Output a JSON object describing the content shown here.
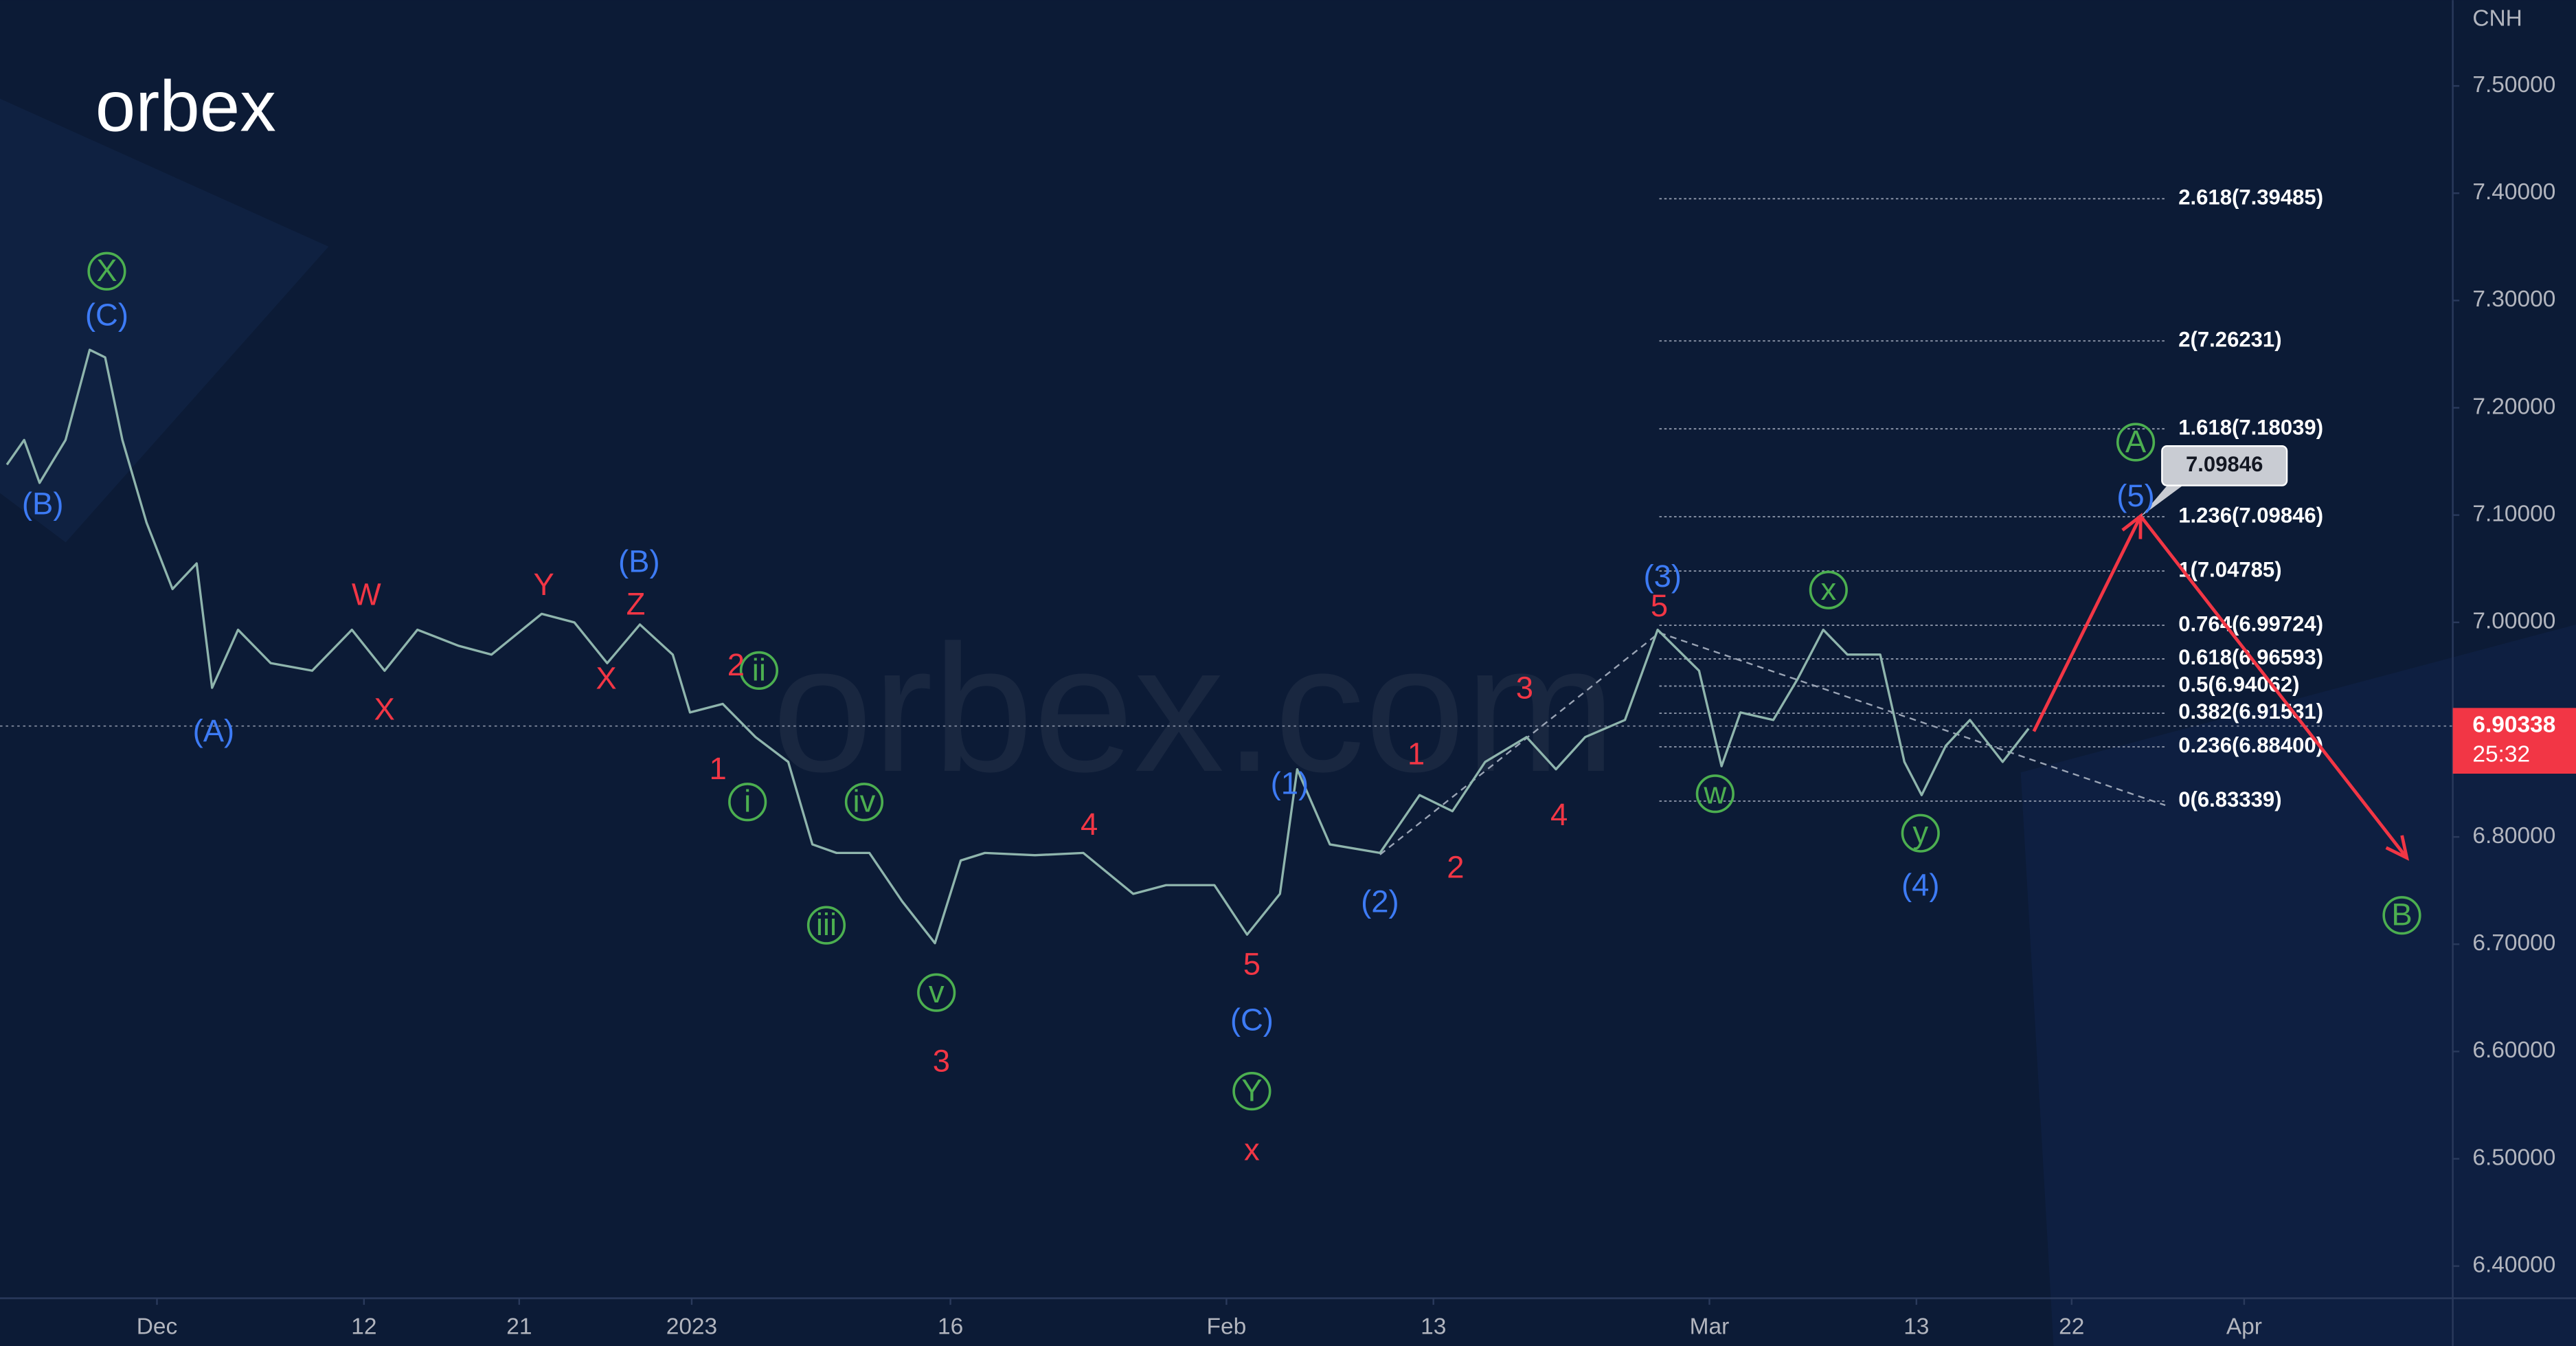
{
  "brand": "orbex",
  "watermark": "orbex.com",
  "chart_data": {
    "type": "line",
    "symbol": "CNH",
    "x": [
      -8.7,
      -7.7,
      -6.8,
      -5.3,
      -3.9,
      -3,
      -2,
      -0.6,
      0.9,
      2.3,
      3.2,
      4.7,
      6.6,
      9,
      11.3,
      13.2,
      15.1,
      17.5,
      19.4,
      22.3,
      24.2,
      26.1,
      28,
      29.9,
      30.9,
      32.8,
      34.7,
      36.6,
      38,
      39.4,
      41.3,
      43.2,
      45.1,
      46.6,
      48,
      50.9,
      53.7,
      56.6,
      58.5,
      61.3,
      63.2,
      65.1,
      66.1,
      68,
      70.9,
      73.2,
      75.1,
      77,
      79.4,
      81.1,
      82.8,
      85.1,
      87,
      89.4,
      90.7,
      91.8,
      93.7,
      95.1,
      96.6,
      98,
      99.9,
      101.3,
      102.3,
      103.7,
      105.1,
      107,
      108.5
    ],
    "series": [
      {
        "color": "#8fb5ad",
        "values": [
          7.147,
          7.17,
          7.13,
          7.17,
          7.254,
          7.247,
          7.17,
          7.093,
          7.031,
          7.055,
          6.939,
          6.993,
          6.962,
          6.955,
          6.993,
          6.955,
          6.993,
          6.978,
          6.97,
          7.008,
          7.0,
          6.962,
          6.998,
          6.97,
          6.916,
          6.924,
          6.893,
          6.87,
          6.793,
          6.785,
          6.785,
          6.74,
          6.701,
          6.778,
          6.785,
          6.783,
          6.785,
          6.747,
          6.755,
          6.755,
          6.709,
          6.747,
          6.863,
          6.793,
          6.785,
          6.839,
          6.824,
          6.87,
          6.893,
          6.863,
          6.893,
          6.909,
          6.993,
          6.955,
          6.866,
          6.916,
          6.909,
          6.947,
          6.993,
          6.97,
          6.97,
          6.87,
          6.839,
          6.885,
          6.909,
          6.87,
          6.901
        ]
      }
    ],
    "xlim": [
      -9.1,
      133
    ],
    "xticks": [
      {
        "value": 0,
        "label": "Dec"
      },
      12,
      21,
      {
        "value": 31,
        "label": "2023"
      },
      {
        "value": 46,
        "label": "16"
      },
      {
        "value": 62,
        "label": "Feb"
      },
      {
        "value": 74,
        "label": "13"
      },
      {
        "value": 90,
        "label": "Mar"
      },
      {
        "value": 102,
        "label": "13"
      },
      {
        "value": 111,
        "label": "22"
      },
      {
        "value": 121,
        "label": "Apr"
      }
    ],
    "ylim": [
      6.37,
      7.58
    ],
    "yticks": [
      {
        "value": 6.4,
        "label": "6.40000"
      },
      {
        "value": 6.5,
        "label": "6.50000"
      },
      {
        "value": 6.6,
        "label": "6.60000"
      },
      {
        "value": 6.7,
        "label": "6.70000"
      },
      {
        "value": 6.8,
        "label": "6.80000"
      },
      {
        "value": 6.9,
        "label": "6.90000"
      },
      {
        "value": 7.0,
        "label": "7.00000"
      },
      {
        "value": 7.1,
        "label": "7.10000"
      },
      {
        "value": 7.2,
        "label": "7.20000"
      },
      {
        "value": 7.3,
        "label": "7.30000"
      },
      {
        "value": 7.4,
        "label": "7.40000"
      },
      {
        "value": 7.5,
        "label": "7.50000"
      }
    ],
    "last_price": 6.90338,
    "countdown": "25:32",
    "last_price_color": "#f23645",
    "target": 7.09846,
    "fib_levels": [
      {
        "value": 6.83339,
        "label": "0(6.83339)"
      },
      {
        "value": 6.884,
        "label": "0.236(6.88400)"
      },
      {
        "value": 6.91531,
        "label": "0.382(6.91531)"
      },
      {
        "value": 6.94062,
        "label": "0.5(6.94062)"
      },
      {
        "value": 6.96593,
        "label": "0.618(6.96593)"
      },
      {
        "value": 6.99724,
        "label": "0.764(6.99724)"
      },
      {
        "value": 7.04785,
        "label": "1(7.04785)"
      },
      {
        "value": 7.09846,
        "label": "1.236(7.09846)"
      },
      {
        "value": 7.18039,
        "label": "1.618(7.18039)"
      },
      {
        "value": 7.26231,
        "label": "2(7.26231)"
      },
      {
        "value": 7.39485,
        "label": "2.618(7.39485)"
      }
    ],
    "wave_groups": [
      {
        "color": "#4caf50",
        "circled": true,
        "labels": [
          "X",
          "ii",
          "i",
          "iv",
          "iii",
          "v",
          "Y",
          "x",
          "w",
          "y",
          "A",
          "B"
        ]
      },
      {
        "color": "#3d7bf5",
        "circled": false,
        "labels": [
          "(C)",
          "(B)",
          "(A)",
          "(B)",
          "(1)",
          "(2)",
          "(C)",
          "(3)",
          "(5)",
          "(4)"
        ]
      },
      {
        "color": "#f23645",
        "circled": false,
        "labels": [
          "W",
          "X",
          "Y",
          "Z",
          "X",
          "2",
          "1",
          "3",
          "4",
          "5",
          "x",
          "1",
          "2",
          "3",
          "4",
          "5"
        ]
      }
    ]
  }
}
